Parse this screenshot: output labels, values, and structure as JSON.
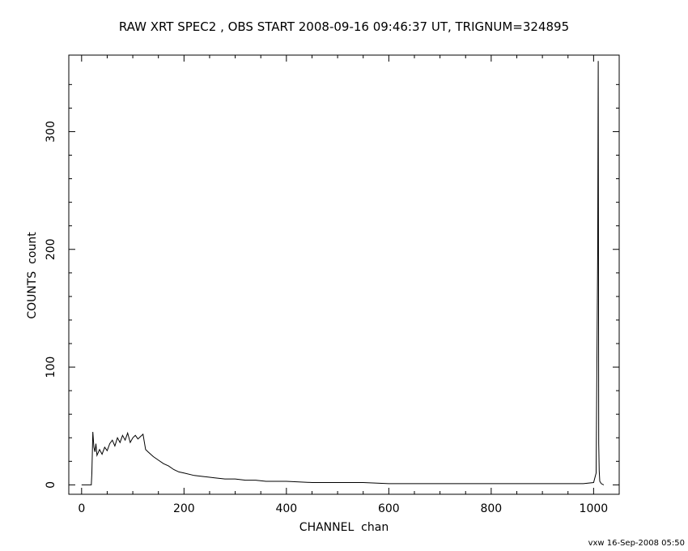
{
  "chart_data": {
    "type": "line",
    "title": "RAW XRT SPEC2 , OBS START 2008-09-16 09:46:37 UT, TRIGNUM=324895",
    "xlabel": "CHANNEL  chan",
    "ylabel": "COUNTS  count",
    "xlim": [
      -25,
      1050
    ],
    "ylim": [
      -8,
      365
    ],
    "xticks": [
      0,
      200,
      400,
      600,
      800,
      1000
    ],
    "yticks": [
      0,
      100,
      200,
      300
    ],
    "grid": false,
    "series": [
      {
        "x": [
          0,
          10,
          19,
          20,
          22,
          24,
          26,
          28,
          30,
          35,
          40,
          45,
          50,
          55,
          60,
          65,
          70,
          75,
          80,
          85,
          90,
          95,
          100,
          105,
          110,
          115,
          120,
          125,
          130,
          140,
          150,
          160,
          170,
          180,
          190,
          200,
          220,
          240,
          260,
          280,
          300,
          320,
          340,
          360,
          380,
          400,
          450,
          500,
          550,
          600,
          650,
          700,
          750,
          800,
          850,
          900,
          950,
          980,
          1000,
          1005,
          1008,
          1009,
          1010,
          1011,
          1012,
          1015,
          1020
        ],
        "y": [
          0,
          0,
          0,
          10,
          45,
          32,
          28,
          35,
          25,
          30,
          26,
          32,
          29,
          35,
          38,
          33,
          40,
          36,
          42,
          38,
          44,
          36,
          40,
          42,
          39,
          41,
          43,
          30,
          28,
          24,
          21,
          18,
          16,
          13,
          11,
          10,
          8,
          7,
          6,
          5,
          5,
          4,
          4,
          3,
          3,
          3,
          2,
          2,
          2,
          1,
          1,
          1,
          1,
          1,
          1,
          1,
          1,
          1,
          2,
          10,
          195,
          360,
          35,
          12,
          3,
          1,
          0
        ]
      }
    ]
  },
  "footer": "vxw 16-Sep-2008 05:50"
}
